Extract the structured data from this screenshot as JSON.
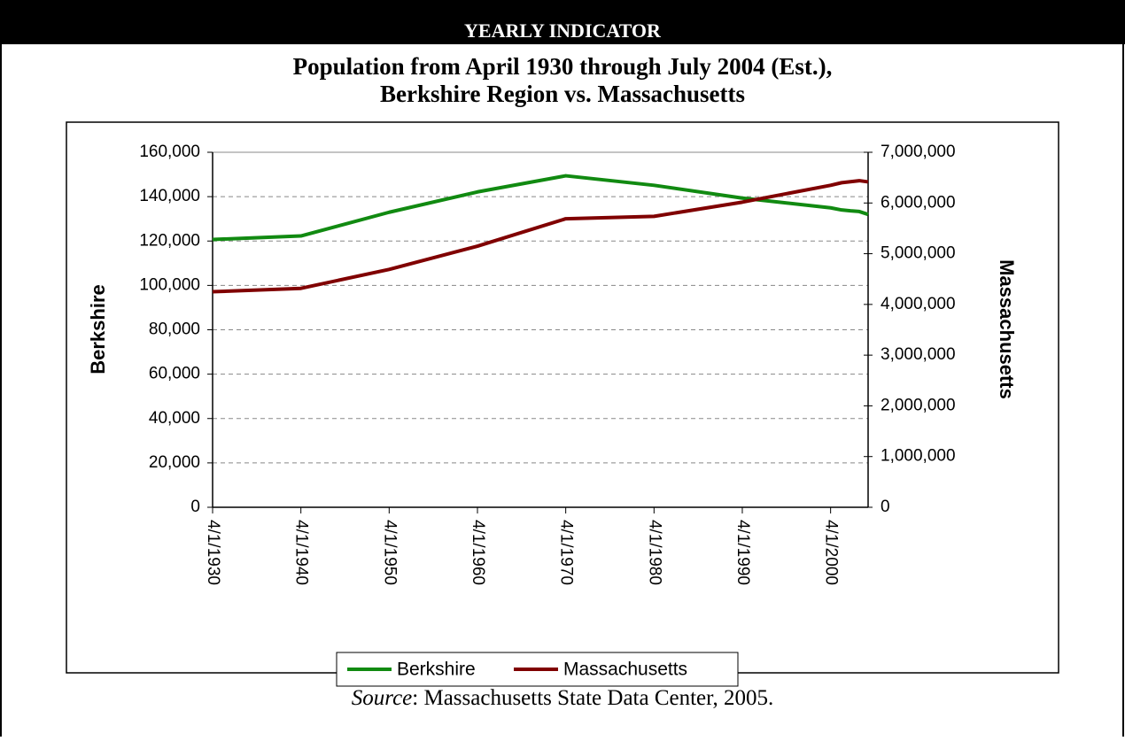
{
  "header": "YEARLY INDICATOR",
  "chart_data": {
    "type": "line",
    "title": [
      "Population from April 1930 through July 2004 (Est.),",
      "Berkshire Region vs. Massachusetts"
    ],
    "ylabel": "Berkshire",
    "y2label": "Massachusetts",
    "x": [
      "1930-04-01",
      "1940-04-01",
      "1950-04-01",
      "1960-04-01",
      "1970-04-01",
      "1980-04-01",
      "1990-04-01",
      "2000-04-01",
      "2001-07-01",
      "2002-07-01",
      "2003-07-01",
      "2004-07-01"
    ],
    "xlim": [
      "1930-04-01",
      "2004-07-01"
    ],
    "xticks": [
      {
        "value": "1930-04-01",
        "label": "4/1/1930"
      },
      {
        "value": "1940-04-01",
        "label": "4/1/1940"
      },
      {
        "value": "1950-04-01",
        "label": "4/1/1950"
      },
      {
        "value": "1960-04-01",
        "label": "4/1/1960"
      },
      {
        "value": "1970-04-01",
        "label": "4/1/1970"
      },
      {
        "value": "1980-04-01",
        "label": "4/1/1980"
      },
      {
        "value": "1990-04-01",
        "label": "4/1/1990"
      },
      {
        "value": "2000-04-01",
        "label": "4/1/2000"
      }
    ],
    "ylim": [
      0,
      160000
    ],
    "yticks": [
      0,
      {
        "value": 20000,
        "label": "20,000"
      },
      {
        "value": 40000,
        "label": "40,000"
      },
      {
        "value": 60000,
        "label": "60,000"
      },
      {
        "value": 80000,
        "label": "80,000"
      },
      {
        "value": 100000,
        "label": "100,000"
      },
      {
        "value": 120000,
        "label": "120,000"
      },
      {
        "value": 140000,
        "label": "140,000"
      },
      {
        "value": 160000,
        "label": "160,000"
      }
    ],
    "y2lim": [
      0,
      7000000
    ],
    "y2ticks": [
      0,
      {
        "value": 1000000,
        "label": "1,000,000"
      },
      {
        "value": 2000000,
        "label": "2,000,000"
      },
      {
        "value": 3000000,
        "label": "3,000,000"
      },
      {
        "value": 4000000,
        "label": "4,000,000"
      },
      {
        "value": 5000000,
        "label": "5,000,000"
      },
      {
        "value": 6000000,
        "label": "6,000,000"
      },
      {
        "value": 7000000,
        "label": "7,000,000"
      }
    ],
    "grid": true,
    "legend": "bottom",
    "series": [
      {
        "name": "Berkshire",
        "color": "#118a11",
        "values": [
          120700,
          122273,
          132966,
          142135,
          149402,
          145110,
          139352,
          134953,
          134000,
          133600,
          133300,
          132000
        ]
      },
      {
        "name": "Massachusetts",
        "color": "#800000",
        "axis": "y2",
        "values": [
          4249614,
          4316721,
          4690514,
          5148578,
          5689170,
          5737037,
          6016425,
          6349097,
          6400000,
          6420000,
          6440000,
          6416505
        ]
      }
    ]
  },
  "source": {
    "label": "Source",
    "text": ":  Massachusetts State Data Center, 2005."
  }
}
